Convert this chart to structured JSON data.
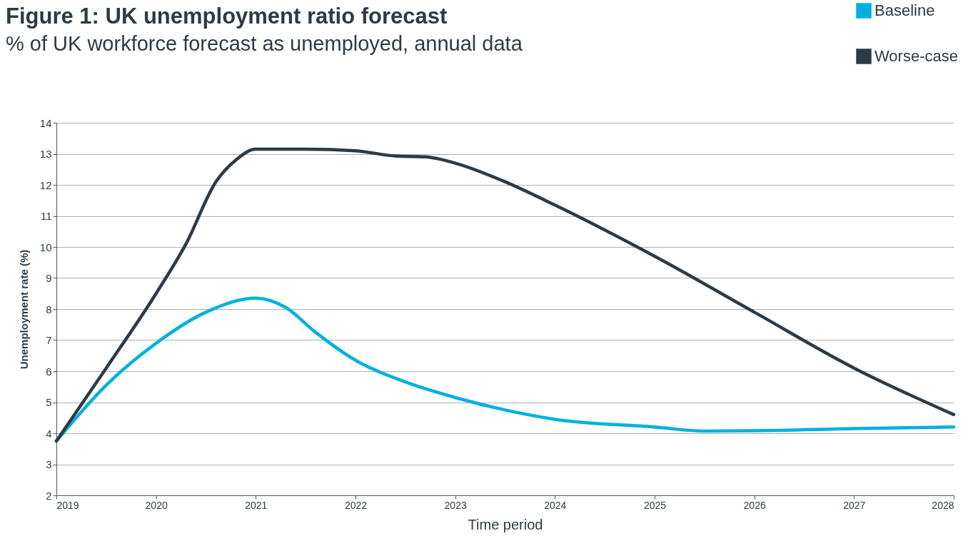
{
  "chart_data": {
    "type": "line",
    "title": "Figure 1: UK unemployment ratio forecast",
    "subtitle": "% of UK workforce forecast as unemployed, annual data",
    "xlabel": "Time period",
    "ylabel": "Unemployment rate (%)",
    "series": [
      {
        "name": "Baseline",
        "color": "#00b0e0",
        "x": [
          2019,
          2019.5,
          2020,
          2020.5,
          2021,
          2021.3,
          2021.6,
          2022,
          2022.5,
          2023,
          2023.5,
          2024,
          2025,
          2025.5,
          2026,
          2027,
          2028
        ],
        "values": [
          3.75,
          5.55,
          6.9,
          7.9,
          8.35,
          8.05,
          7.25,
          6.35,
          5.65,
          5.15,
          4.75,
          4.45,
          4.2,
          4.07,
          4.08,
          4.15,
          4.2
        ]
      },
      {
        "name": "Worse-case",
        "color": "#2d3b45",
        "x": [
          2019,
          2019.5,
          2020,
          2020.3,
          2020.6,
          2020.8,
          2021,
          2021.5,
          2022,
          2022.4,
          2022.7,
          2023,
          2023.5,
          2024,
          2025,
          2026,
          2027,
          2028
        ],
        "values": [
          3.75,
          6.1,
          8.5,
          10.1,
          12.1,
          12.8,
          13.15,
          13.15,
          13.1,
          12.93,
          12.9,
          12.7,
          12.1,
          11.35,
          9.7,
          7.9,
          6.1,
          4.6
        ]
      }
    ],
    "xlim": [
      2019,
      2028
    ],
    "xticks": [
      2019,
      2020,
      2021,
      2022,
      2023,
      2024,
      2025,
      2026,
      2027,
      2028
    ],
    "ylim": [
      2,
      14
    ],
    "yticks": [
      2,
      3,
      4,
      5,
      6,
      7,
      8,
      9,
      10,
      11,
      12,
      13,
      14
    ],
    "grid": "y",
    "legend": "top right"
  }
}
